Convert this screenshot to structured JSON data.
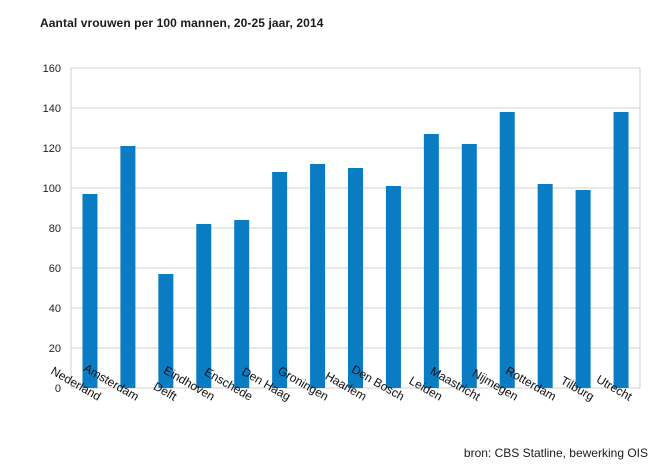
{
  "chart_data": {
    "type": "bar",
    "title": "Aantal vrouwen per 100 mannen, 20-25 jaar, 2014",
    "source": "bron: CBS Statline, bewerking OIS",
    "categories": [
      "Nederland",
      "Amsterdam",
      "Delft",
      "Eindhoven",
      "Enschede",
      "Den Haag",
      "Groningen",
      "Haarlem",
      "Den Bosch",
      "Leiden",
      "Maastricht",
      "Nijmegen",
      "Rotterdam",
      "Tilburg",
      "Utrecht"
    ],
    "values": [
      97,
      121,
      57,
      82,
      84,
      108,
      112,
      110,
      101,
      127,
      122,
      138,
      102,
      99,
      138
    ],
    "ylim": [
      0,
      160
    ],
    "yticks": [
      "0",
      "20",
      "40",
      "60",
      "80",
      "100",
      "120",
      "140",
      "160"
    ],
    "xlabel": "",
    "ylabel": "",
    "grid": true,
    "bar_color": "#0a7cc4",
    "grid_color": "#d0d0d0"
  }
}
